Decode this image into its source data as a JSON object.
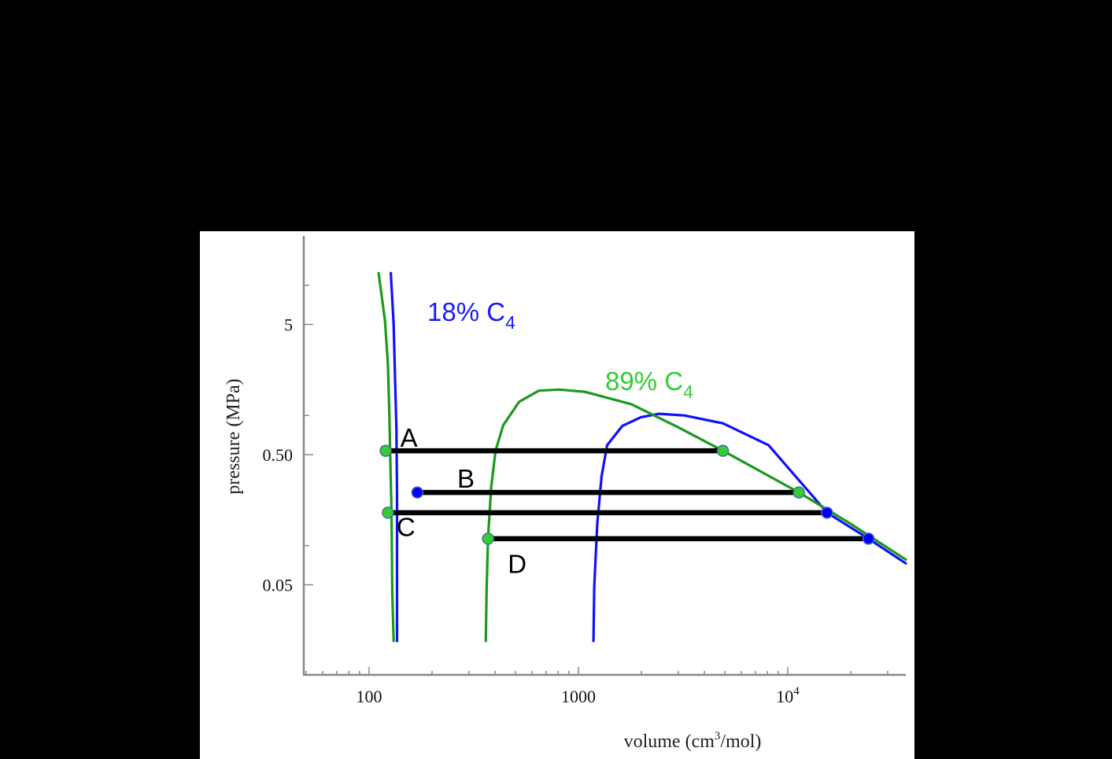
{
  "chart_data": {
    "type": "line",
    "title": "",
    "xlabel": "volume (cm³/mol)",
    "xlabel_base": "volume (cm",
    "xlabel_sup": "3",
    "xlabel_tail": "/mol)",
    "ylabel": "pressure (MPa)",
    "xscale": "log",
    "yscale": "log",
    "xlim": [
      53,
      3800
    ],
    "xlim_note": "x axis spans ~53 to ~37000 cm3/mol",
    "xrange": [
      53,
      37000
    ],
    "yrange": [
      0.0185,
      12.5
    ],
    "grid": false,
    "legend": "inline labels",
    "x_ticks": [
      {
        "value": 100,
        "label": "100"
      },
      {
        "value": 1000,
        "label": "1000"
      },
      {
        "value": 10000,
        "label": "10",
        "sup": "4"
      }
    ],
    "y_ticks": [
      {
        "value": 5,
        "label": "5"
      },
      {
        "value": 0.5,
        "label": "0.50"
      },
      {
        "value": 0.05,
        "label": "0.05"
      }
    ],
    "y_minor_ticks": [
      10,
      1,
      0.1
    ],
    "series": [
      {
        "name": "18% C4",
        "label_main": "18% C",
        "label_sub": "4",
        "color": "#1010ff",
        "label_color": "#1a1aff",
        "branches": [
          [
            [
              127,
              12.4
            ],
            [
              131,
              5.0
            ],
            [
              133,
              2.0
            ],
            [
              135,
              0.8
            ],
            [
              136,
              0.25
            ],
            [
              136,
              0.0185
            ]
          ],
          [
            [
              1180,
              0.0185
            ],
            [
              1190,
              0.048
            ],
            [
              1230,
              0.146
            ],
            [
              1290,
              0.34
            ],
            [
              1370,
              0.59
            ],
            [
              1620,
              0.83
            ],
            [
              1990,
              0.97
            ],
            [
              2430,
              1.03
            ],
            [
              3200,
              1.0
            ],
            [
              4900,
              0.87
            ],
            [
              8100,
              0.59
            ],
            [
              15400,
              0.179
            ],
            [
              24300,
              0.113
            ],
            [
              37000,
              0.073
            ]
          ]
        ]
      },
      {
        "name": "89% C4",
        "label_main": "89% C",
        "label_sub": "4",
        "color": "#1a9a1a",
        "label_color": "#33cc33",
        "branches": [
          [
            [
              111,
              12.4
            ],
            [
              119,
              5.4
            ],
            [
              123,
              2.5
            ],
            [
              125,
              1.0
            ],
            [
              126,
              0.535
            ],
            [
              128,
              0.179
            ],
            [
              129,
              0.045
            ],
            [
              131,
              0.0185
            ]
          ],
          [
            [
              361,
              0.0185
            ],
            [
              364,
              0.045
            ],
            [
              370,
              0.113
            ],
            [
              383,
              0.28
            ],
            [
              402,
              0.535
            ],
            [
              437,
              0.84
            ],
            [
              520,
              1.27
            ],
            [
              647,
              1.55
            ],
            [
              810,
              1.58
            ],
            [
              1070,
              1.52
            ],
            [
              1790,
              1.22
            ],
            [
              3000,
              0.81
            ],
            [
              4900,
              0.535
            ],
            [
              11300,
              0.256
            ],
            [
              19700,
              0.149
            ],
            [
              37000,
              0.078
            ]
          ]
        ]
      }
    ],
    "tie_lines": [
      {
        "label": "A",
        "pressure": 0.535,
        "v_left": 120,
        "v_right": 4900,
        "left_marker": "89% C4",
        "right_marker": "89% C4"
      },
      {
        "label": "B",
        "pressure": 0.256,
        "v_left": 170,
        "v_right": 11300,
        "left_marker": "18% C4",
        "right_marker": "89% C4"
      },
      {
        "label": "C",
        "pressure": 0.179,
        "v_left": 123,
        "v_right": 15400,
        "left_marker": "89% C4",
        "right_marker": "18% C4"
      },
      {
        "label": "D",
        "pressure": 0.113,
        "v_left": 370,
        "v_right": 24300,
        "left_marker": "89% C4",
        "right_marker": "18% C4"
      }
    ],
    "annotations": [
      {
        "text": "A",
        "v": 155,
        "p": 0.68
      },
      {
        "text": "B",
        "v": 290,
        "p": 0.33
      },
      {
        "text": "C",
        "v": 150,
        "p": 0.14
      },
      {
        "text": "D",
        "v": 510,
        "p": 0.073
      }
    ]
  },
  "colors": {
    "background": "#000000",
    "panel": "#ffffff",
    "axis": "#888888",
    "tie_line": "#000000",
    "marker_green_fill": "#33cc33",
    "marker_blue_fill": "#0000ff",
    "marker_stroke": "#4a6fa5"
  }
}
